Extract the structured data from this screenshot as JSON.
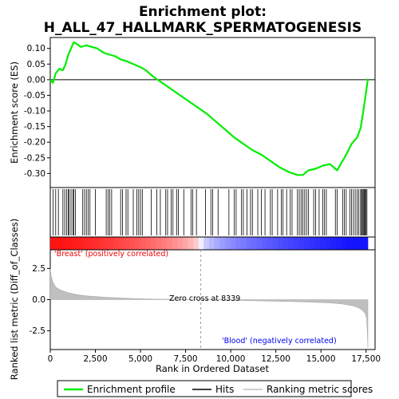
{
  "title_line1": "Enrichment plot:",
  "title_line2": "H_ALL_47_HALLMARK_SPERMATOGENESIS",
  "top_ylabel": "Enrichment score (ES)",
  "bottom_ylabel": "Ranked list metric (Diff_of_Classes)",
  "xlabel": "Rank in Ordered Dataset",
  "label_pos": "'Breast' (positively correlated)",
  "label_neg": "'Blood' (negatively correlated)",
  "zero_cross": "Zero cross at 8339",
  "legend": {
    "profile": "Enrichment profile",
    "hits": "Hits",
    "metric": "Ranking metric scores"
  },
  "colors": {
    "profile": "#00ee00",
    "hits": "#000000",
    "metric": "#bfbfbf",
    "positive": "#ee0000",
    "negative": "#0000ee",
    "zero_line": "#a0a0a0"
  },
  "chart_data": {
    "type": "line",
    "x_ticks": [
      0,
      2500,
      5000,
      7500,
      10000,
      12500,
      15000,
      17500
    ],
    "x_tick_labels": [
      "0",
      "2,500",
      "5,000",
      "7,500",
      "10,000",
      "12,500",
      "15,000",
      "17,500"
    ],
    "xlim": [
      0,
      18000
    ],
    "n_genes": 17600,
    "zero_cross": 8339,
    "es": {
      "ylim": [
        -0.345,
        0.135
      ],
      "y_ticks": [
        0.1,
        0.05,
        0.0,
        -0.05,
        -0.1,
        -0.15,
        -0.2,
        -0.25,
        -0.3
      ],
      "y_tick_labels": [
        "0.10",
        "0.05",
        "0.00",
        "-0.05",
        "-0.10",
        "-0.15",
        "-0.20",
        "-0.25",
        "-0.30"
      ],
      "points": [
        [
          0,
          0.0
        ],
        [
          150,
          -0.01
        ],
        [
          300,
          0.02
        ],
        [
          500,
          0.035
        ],
        [
          700,
          0.03
        ],
        [
          850,
          0.05
        ],
        [
          1000,
          0.08
        ],
        [
          1150,
          0.1
        ],
        [
          1300,
          0.12
        ],
        [
          1450,
          0.115
        ],
        [
          1700,
          0.105
        ],
        [
          2000,
          0.11
        ],
        [
          2300,
          0.105
        ],
        [
          2600,
          0.1
        ],
        [
          3000,
          0.085
        ],
        [
          3300,
          0.08
        ],
        [
          3600,
          0.075
        ],
        [
          3900,
          0.065
        ],
        [
          4200,
          0.06
        ],
        [
          4600,
          0.05
        ],
        [
          5000,
          0.04
        ],
        [
          5300,
          0.03
        ],
        [
          5700,
          0.01
        ],
        [
          6200,
          -0.01
        ],
        [
          6700,
          -0.03
        ],
        [
          7200,
          -0.05
        ],
        [
          7700,
          -0.07
        ],
        [
          8200,
          -0.09
        ],
        [
          8700,
          -0.11
        ],
        [
          9200,
          -0.135
        ],
        [
          9700,
          -0.16
        ],
        [
          10200,
          -0.185
        ],
        [
          10700,
          -0.205
        ],
        [
          11200,
          -0.225
        ],
        [
          11700,
          -0.24
        ],
        [
          12200,
          -0.26
        ],
        [
          12700,
          -0.28
        ],
        [
          13200,
          -0.295
        ],
        [
          13700,
          -0.305
        ],
        [
          14000,
          -0.305
        ],
        [
          14300,
          -0.29
        ],
        [
          14700,
          -0.285
        ],
        [
          15100,
          -0.275
        ],
        [
          15500,
          -0.27
        ],
        [
          15900,
          -0.29
        ],
        [
          16100,
          -0.27
        ],
        [
          16400,
          -0.24
        ],
        [
          16700,
          -0.205
        ],
        [
          17000,
          -0.185
        ],
        [
          17200,
          -0.155
        ],
        [
          17350,
          -0.1
        ],
        [
          17450,
          -0.06
        ],
        [
          17550,
          -0.02
        ],
        [
          17600,
          0.003
        ]
      ]
    },
    "metric": {
      "ylim": [
        -4.0,
        4.0
      ],
      "y_ticks": [
        2.5,
        0.0,
        -2.5
      ],
      "y_tick_labels": [
        "2.5",
        "0.0",
        "-2.5"
      ],
      "points": [
        [
          0,
          2.5
        ],
        [
          50,
          1.9
        ],
        [
          150,
          1.4
        ],
        [
          300,
          1.0
        ],
        [
          600,
          0.75
        ],
        [
          1000,
          0.55
        ],
        [
          1500,
          0.4
        ],
        [
          2000,
          0.3
        ],
        [
          3000,
          0.2
        ],
        [
          4000,
          0.12
        ],
        [
          5000,
          0.07
        ],
        [
          6000,
          0.04
        ],
        [
          7000,
          0.02
        ],
        [
          8339,
          0.0
        ],
        [
          9500,
          -0.03
        ],
        [
          10500,
          -0.06
        ],
        [
          11500,
          -0.09
        ],
        [
          12500,
          -0.12
        ],
        [
          13500,
          -0.16
        ],
        [
          14500,
          -0.2
        ],
        [
          15500,
          -0.26
        ],
        [
          16200,
          -0.35
        ],
        [
          16800,
          -0.5
        ],
        [
          17100,
          -0.65
        ],
        [
          17300,
          -0.85
        ],
        [
          17450,
          -1.1
        ],
        [
          17530,
          -1.5
        ],
        [
          17570,
          -2.5
        ],
        [
          17600,
          -3.9
        ]
      ]
    },
    "hits": [
      150,
      300,
      450,
      700,
      800,
      900,
      1000,
      1050,
      1150,
      1250,
      1300,
      1400,
      1800,
      1900,
      2000,
      2100,
      2200,
      2500,
      3100,
      3200,
      3300,
      3400,
      3900,
      4000,
      4200,
      4300,
      4600,
      4800,
      4900,
      5000,
      5100,
      5600,
      5900,
      6100,
      6400,
      6500,
      6700,
      6800,
      7000,
      7100,
      7400,
      7800,
      7900,
      8100,
      8600,
      8900,
      9000,
      9300,
      9900,
      10200,
      10300,
      10600,
      10700,
      10900,
      11100,
      11200,
      11500,
      11700,
      11900,
      12200,
      12300,
      12600,
      12800,
      12900,
      13100,
      13300,
      13400,
      13700,
      13800,
      13900,
      14000,
      14100,
      14200,
      14300,
      14600,
      14700,
      14900,
      15100,
      15200,
      15300,
      15800,
      15900,
      16200,
      16300,
      16400,
      16600,
      16700,
      16800,
      16900,
      17000,
      17100,
      17200,
      17250,
      17300,
      17350,
      17400,
      17450,
      17500,
      17550
    ]
  }
}
